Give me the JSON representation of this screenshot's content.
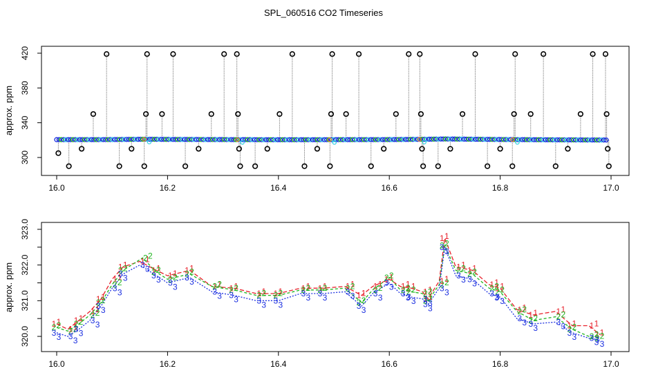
{
  "title": "SPL_060516  CO2 Timeseries",
  "colors": {
    "series1": "#e8202a",
    "series2": "#1db41d",
    "series3": "#1a2ee0",
    "cyan": "#2ecfe0",
    "orange": "#f08a20",
    "raw_line": "#888888",
    "outlier": "#000000"
  },
  "chart_data": [
    {
      "type": "scatter",
      "name": "raw-timeseries",
      "ylabel": "approx. ppm",
      "xlabel": "",
      "xlim": [
        16.0,
        17.0
      ],
      "ylim": [
        285,
        425
      ],
      "xticks": [
        16.0,
        16.2,
        16.4,
        16.6,
        16.8,
        17.0
      ],
      "yticks": [
        300,
        340,
        380,
        420
      ],
      "baseline": [
        [
          16.0,
          320.5
        ],
        [
          16.1,
          320.6
        ],
        [
          16.16,
          321.0
        ],
        [
          16.2,
          320.8
        ],
        [
          16.3,
          320.6
        ],
        [
          16.4,
          320.4
        ],
        [
          16.5,
          320.5
        ],
        [
          16.6,
          320.6
        ],
        [
          16.66,
          320.9
        ],
        [
          16.7,
          321.3
        ],
        [
          16.8,
          320.7
        ],
        [
          16.9,
          320.3
        ],
        [
          16.99,
          320.1
        ]
      ],
      "outliers": [
        [
          16.003,
          305
        ],
        [
          16.022,
          290
        ],
        [
          16.045,
          310
        ],
        [
          16.066,
          350
        ],
        [
          16.09,
          419
        ],
        [
          16.113,
          290
        ],
        [
          16.135,
          310
        ],
        [
          16.158,
          290
        ],
        [
          16.161,
          350
        ],
        [
          16.163,
          419
        ],
        [
          16.19,
          350
        ],
        [
          16.21,
          419
        ],
        [
          16.232,
          290
        ],
        [
          16.256,
          310
        ],
        [
          16.279,
          350
        ],
        [
          16.302,
          419
        ],
        [
          16.325,
          419
        ],
        [
          16.327,
          350
        ],
        [
          16.329,
          310
        ],
        [
          16.331,
          290
        ],
        [
          16.358,
          290
        ],
        [
          16.38,
          310
        ],
        [
          16.402,
          350
        ],
        [
          16.425,
          419
        ],
        [
          16.447,
          290
        ],
        [
          16.47,
          310
        ],
        [
          16.493,
          290
        ],
        [
          16.495,
          350
        ],
        [
          16.497,
          419
        ],
        [
          16.522,
          350
        ],
        [
          16.545,
          419
        ],
        [
          16.567,
          290
        ],
        [
          16.59,
          310
        ],
        [
          16.612,
          350
        ],
        [
          16.635,
          419
        ],
        [
          16.655,
          419
        ],
        [
          16.657,
          350
        ],
        [
          16.659,
          310
        ],
        [
          16.661,
          290
        ],
        [
          16.688,
          290
        ],
        [
          16.71,
          310
        ],
        [
          16.732,
          350
        ],
        [
          16.755,
          419
        ],
        [
          16.777,
          290
        ],
        [
          16.8,
          310
        ],
        [
          16.822,
          290
        ],
        [
          16.825,
          350
        ],
        [
          16.827,
          419
        ],
        [
          16.855,
          350
        ],
        [
          16.878,
          419
        ],
        [
          16.9,
          290
        ],
        [
          16.922,
          310
        ],
        [
          16.945,
          350
        ],
        [
          16.967,
          419
        ],
        [
          16.99,
          419
        ],
        [
          16.992,
          350
        ],
        [
          16.994,
          310
        ],
        [
          16.996,
          290
        ]
      ]
    },
    {
      "type": "line",
      "name": "smoothed-timeseries",
      "ylabel": "approx. ppm",
      "xlabel": "",
      "xlim": [
        16.0,
        17.0
      ],
      "ylim": [
        319.8,
        323.0
      ],
      "xticks": [
        16.0,
        16.2,
        16.4,
        16.6,
        16.8,
        17.0
      ],
      "yticks": [
        320.0,
        321.0,
        322.0,
        323.0
      ],
      "ytick_labels": [
        "320.0",
        "321.0",
        "322.0",
        "323.0"
      ],
      "series": [
        {
          "name": "1",
          "points": [
            [
              16.0,
              320.35
            ],
            [
              16.02,
              320.2
            ],
            [
              16.04,
              320.45
            ],
            [
              16.06,
              320.7
            ],
            [
              16.08,
              321.05
            ],
            [
              16.1,
              321.6
            ],
            [
              16.12,
              321.95
            ],
            [
              16.15,
              322.1
            ],
            [
              16.18,
              321.85
            ],
            [
              16.2,
              321.7
            ],
            [
              16.24,
              321.85
            ],
            [
              16.28,
              321.4
            ],
            [
              16.32,
              321.35
            ],
            [
              16.36,
              321.2
            ],
            [
              16.4,
              321.2
            ],
            [
              16.44,
              321.35
            ],
            [
              16.48,
              321.35
            ],
            [
              16.52,
              321.4
            ],
            [
              16.55,
              321.15
            ],
            [
              16.57,
              321.4
            ],
            [
              16.6,
              321.6
            ],
            [
              16.62,
              321.4
            ],
            [
              16.64,
              321.35
            ],
            [
              16.66,
              321.25
            ],
            [
              16.67,
              321.05
            ],
            [
              16.69,
              321.55
            ],
            [
              16.7,
              322.75
            ],
            [
              16.72,
              321.95
            ],
            [
              16.75,
              321.85
            ],
            [
              16.78,
              321.45
            ],
            [
              16.8,
              321.35
            ],
            [
              16.83,
              320.75
            ],
            [
              16.86,
              320.6
            ],
            [
              16.9,
              320.7
            ],
            [
              16.93,
              320.3
            ],
            [
              16.96,
              320.3
            ],
            [
              16.98,
              320.05
            ]
          ]
        },
        {
          "name": "2",
          "points": [
            [
              16.0,
              320.25
            ],
            [
              16.02,
              320.15
            ],
            [
              16.04,
              320.35
            ],
            [
              16.06,
              320.6
            ],
            [
              16.08,
              320.95
            ],
            [
              16.1,
              321.45
            ],
            [
              16.12,
              321.85
            ],
            [
              16.155,
              322.2
            ],
            [
              16.18,
              321.8
            ],
            [
              16.2,
              321.6
            ],
            [
              16.24,
              321.75
            ],
            [
              16.28,
              321.4
            ],
            [
              16.32,
              321.3
            ],
            [
              16.36,
              321.15
            ],
            [
              16.4,
              321.15
            ],
            [
              16.44,
              321.3
            ],
            [
              16.48,
              321.3
            ],
            [
              16.52,
              321.35
            ],
            [
              16.55,
              320.95
            ],
            [
              16.57,
              321.3
            ],
            [
              16.6,
              321.65
            ],
            [
              16.62,
              321.3
            ],
            [
              16.64,
              321.25
            ],
            [
              16.66,
              321.2
            ],
            [
              16.67,
              321.0
            ],
            [
              16.69,
              321.45
            ],
            [
              16.7,
              322.55
            ],
            [
              16.72,
              321.85
            ],
            [
              16.75,
              321.75
            ],
            [
              16.78,
              321.35
            ],
            [
              16.8,
              321.25
            ],
            [
              16.83,
              320.7
            ],
            [
              16.86,
              320.45
            ],
            [
              16.9,
              320.55
            ],
            [
              16.93,
              320.2
            ],
            [
              16.96,
              320.0
            ],
            [
              16.98,
              319.95
            ]
          ]
        },
        {
          "name": "3",
          "points": [
            [
              16.0,
              320.1
            ],
            [
              16.02,
              320.0
            ],
            [
              16.04,
              320.2
            ],
            [
              16.06,
              320.45
            ],
            [
              16.08,
              320.85
            ],
            [
              16.1,
              321.35
            ],
            [
              16.12,
              321.75
            ],
            [
              16.15,
              322.0
            ],
            [
              16.18,
              321.7
            ],
            [
              16.2,
              321.5
            ],
            [
              16.24,
              321.65
            ],
            [
              16.28,
              321.25
            ],
            [
              16.32,
              321.15
            ],
            [
              16.36,
              321.0
            ],
            [
              16.4,
              321.0
            ],
            [
              16.44,
              321.2
            ],
            [
              16.48,
              321.2
            ],
            [
              16.52,
              321.25
            ],
            [
              16.55,
              320.85
            ],
            [
              16.57,
              321.2
            ],
            [
              16.6,
              321.5
            ],
            [
              16.62,
              321.2
            ],
            [
              16.64,
              321.1
            ],
            [
              16.66,
              321.05
            ],
            [
              16.67,
              320.9
            ],
            [
              16.69,
              321.35
            ],
            [
              16.7,
              322.5
            ],
            [
              16.72,
              321.7
            ],
            [
              16.75,
              321.6
            ],
            [
              16.78,
              321.2
            ],
            [
              16.8,
              321.1
            ],
            [
              16.83,
              320.5
            ],
            [
              16.86,
              320.35
            ],
            [
              16.9,
              320.4
            ],
            [
              16.93,
              320.1
            ],
            [
              16.96,
              319.95
            ],
            [
              16.98,
              319.9
            ]
          ]
        }
      ]
    }
  ]
}
